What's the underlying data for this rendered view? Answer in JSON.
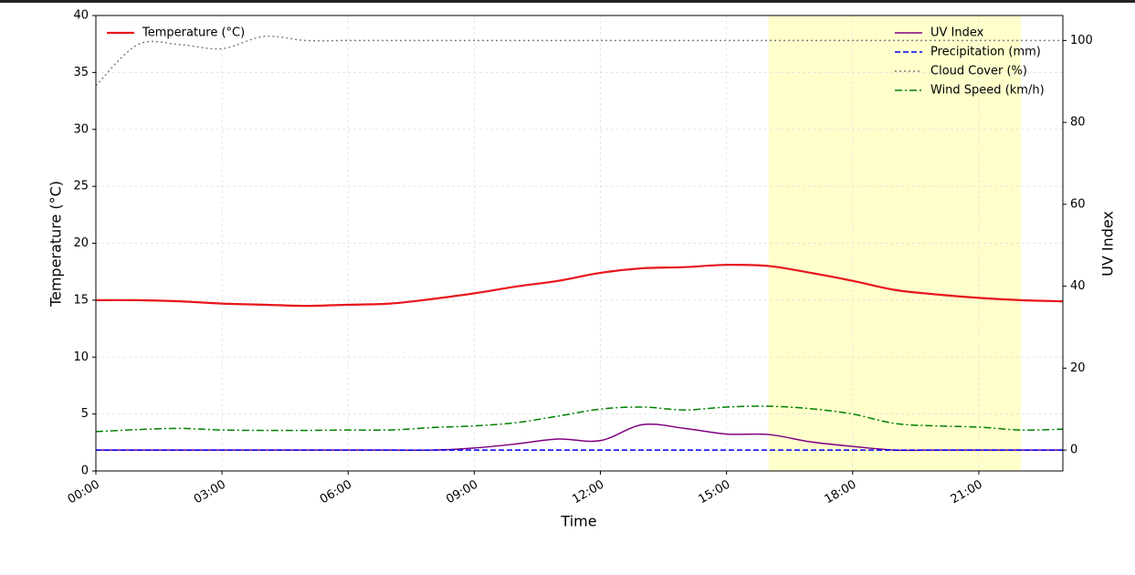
{
  "chart_data": {
    "type": "line",
    "x_label": "Time",
    "y_label": "Temperature (°C)",
    "y2_label": "UV Index",
    "x": [
      "00:00",
      "01:00",
      "02:00",
      "03:00",
      "04:00",
      "05:00",
      "06:00",
      "07:00",
      "08:00",
      "09:00",
      "10:00",
      "11:00",
      "12:00",
      "13:00",
      "14:00",
      "15:00",
      "16:00",
      "17:00",
      "18:00",
      "19:00",
      "20:00",
      "21:00",
      "22:00",
      "23:00"
    ],
    "xticks": [
      "00:00",
      "03:00",
      "06:00",
      "09:00",
      "12:00",
      "15:00",
      "18:00",
      "21:00"
    ],
    "highlight": [
      "16:00",
      "22:00"
    ],
    "highlight_color": "#ffffcc",
    "ylim": [
      0,
      40
    ],
    "yticks": [
      0,
      5,
      10,
      15,
      20,
      25,
      30,
      35,
      40
    ],
    "y2lim": [
      -5.1,
      106.1
    ],
    "y2ticks": [
      0,
      20,
      40,
      60,
      80,
      100
    ],
    "grid": true,
    "series": [
      {
        "name": "Temperature (°C)",
        "color": "#e8141c",
        "dash": "solid",
        "width": 2.2,
        "axis": "y",
        "legend": "upper left",
        "values": [
          15.0,
          15.0,
          14.9,
          14.7,
          14.6,
          14.5,
          14.6,
          14.7,
          15.1,
          15.6,
          16.2,
          16.7,
          17.4,
          17.8,
          17.9,
          18.1,
          18.0,
          17.4,
          16.7,
          15.9,
          15.5,
          15.2,
          15.0,
          14.9
        ]
      },
      {
        "name": "UV Index",
        "color": "#800080",
        "dash": "solid",
        "width": 1.5,
        "axis": "y2",
        "legend": "upper right",
        "values": [
          0,
          0,
          0,
          0,
          0,
          0,
          0,
          0,
          0,
          0.5,
          1.5,
          2.7,
          2.3,
          6.2,
          5.3,
          3.9,
          3.8,
          2.0,
          0.9,
          0,
          0,
          0,
          0,
          0
        ]
      },
      {
        "name": "Precipitation (mm)",
        "color": "#0000ff",
        "dash": "dashed",
        "width": 1.5,
        "axis": "y2",
        "legend": "upper right",
        "values": [
          0,
          0,
          0,
          0,
          0,
          0,
          0,
          0,
          0,
          0,
          0,
          0,
          0,
          0,
          0,
          0,
          0,
          0,
          0,
          0,
          0,
          0,
          0,
          0
        ]
      },
      {
        "name": "Cloud Cover (%)",
        "color": "#808080",
        "dash": "dotted",
        "width": 1.5,
        "axis": "y2",
        "legend": "upper right",
        "values": [
          89,
          99,
          99,
          98,
          101,
          100,
          100,
          100,
          100,
          100,
          100,
          100,
          100,
          100,
          100,
          100,
          100,
          100,
          100,
          100,
          100,
          100,
          100,
          100
        ]
      },
      {
        "name": "Wind Speed (km/h)",
        "color": "#008000",
        "dash": "dashdot",
        "width": 1.5,
        "axis": "y2",
        "legend": "upper right",
        "values": [
          4.5,
          5.0,
          5.3,
          4.9,
          4.8,
          4.8,
          4.9,
          4.9,
          5.5,
          5.9,
          6.7,
          8.3,
          10.0,
          10.5,
          9.8,
          10.5,
          10.7,
          10.1,
          8.8,
          6.5,
          5.9,
          5.6,
          4.9,
          5.1
        ]
      }
    ]
  }
}
